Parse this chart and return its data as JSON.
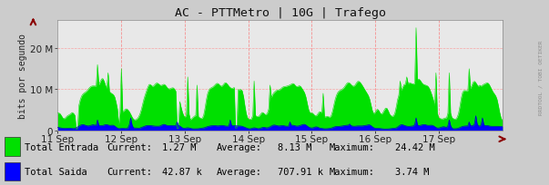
{
  "title": "AC - PTTMetro | 10G | Trafego",
  "ylabel": "bits por segundo",
  "bg_color": "#cccccc",
  "plot_bg_color": "#e8e8e8",
  "yticks": [
    0,
    10000000,
    20000000
  ],
  "ylim": [
    0,
    27000000
  ],
  "xtick_labels": [
    "11 Sep",
    "12 Sep",
    "13 Sep",
    "14 Sep",
    "15 Sep",
    "16 Sep",
    "17 Sep"
  ],
  "green_color": "#00e000",
  "blue_color": "#0000ff",
  "watermark": "RRDTOOL / TOBI OETIKER",
  "legend_green": "Total Entrada",
  "legend_blue": "Total Saida",
  "n_points": 336,
  "seed": 42
}
